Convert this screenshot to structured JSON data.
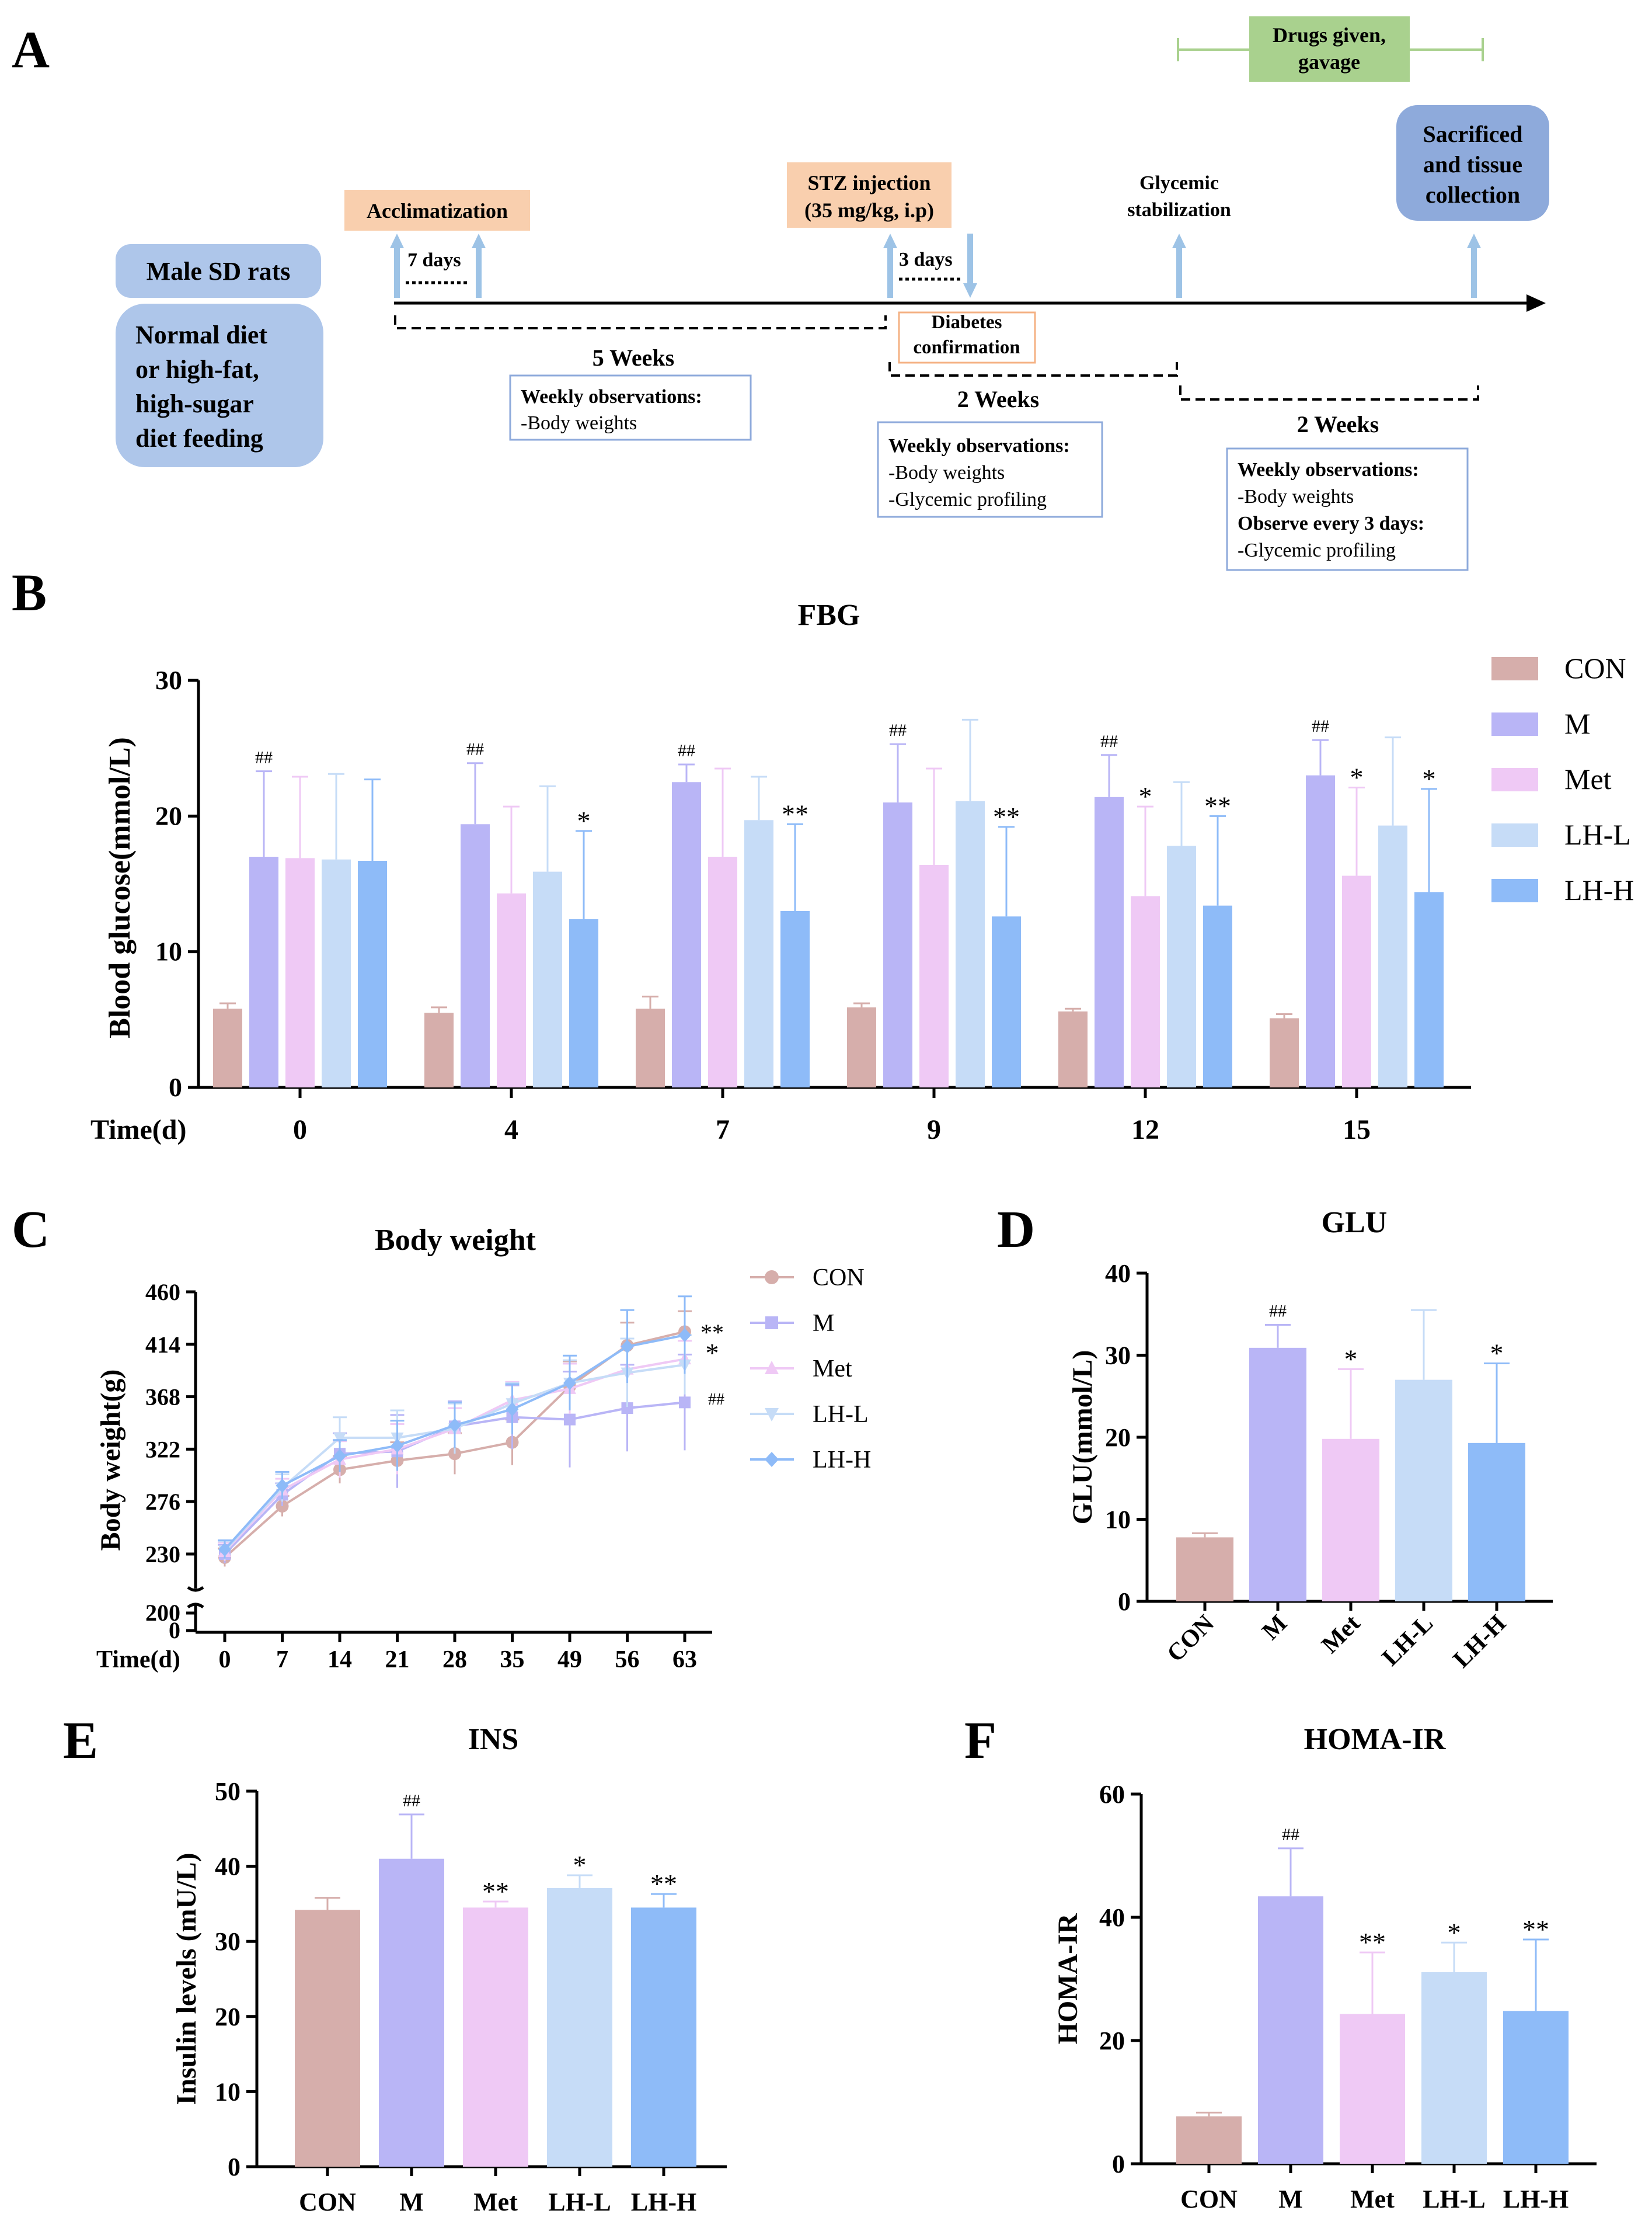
{
  "colors": {
    "CON": "#d6aeab",
    "M": "#b9b5f6",
    "Met": "#efc9f5",
    "LH-L": "#c6dcf7",
    "LH-H": "#8ebbf8",
    "accl_box": "#f9cfae",
    "rats_box": "#aec6ea",
    "drug_box": "#a9d18e",
    "sac_box": "#8eaadb",
    "arrow": "#9dc3e6",
    "note_border": "#8eaadb",
    "axis": "#000000"
  },
  "panel_a": {
    "label": "A",
    "drugs_label": [
      "Drugs given,",
      "gavage"
    ],
    "sacrificed_label": [
      "Sacrificed",
      "and tissue",
      "collection"
    ],
    "acclimatization": "Acclimatization",
    "stz_label": [
      "STZ injection",
      "(35 mg/kg, i.p)"
    ],
    "glycemic_label": [
      "Glycemic",
      "stabilization"
    ],
    "rats_label": "Male SD rats",
    "diet_label": [
      "Normal diet",
      "or high-fat,",
      "high-sugar",
      "diet feeding"
    ],
    "days7": "7 days",
    "days3": "3 days",
    "diabetes_label": [
      "Diabetes",
      "confirmation"
    ],
    "weeks5": "5 Weeks",
    "weeks2a": "2 Weeks",
    "weeks2b": "2 Weeks",
    "note1": [
      "Weekly observations:",
      "-Body weights"
    ],
    "note2": [
      "Weekly observations:",
      "-Body weights",
      "-Glycemic profiling"
    ],
    "note3": [
      "Weekly observations:",
      "-Body weights",
      "Observe every 3 days:",
      "-Glycemic profiling"
    ]
  },
  "chart_data": [
    {
      "panel": "B",
      "type": "bar",
      "title": "FBG",
      "ylabel": "Blood glucose(mmol/L)",
      "xlabel": "Time(d)",
      "ylim": [
        0,
        30
      ],
      "yticks": [
        0,
        10,
        20,
        30
      ],
      "categories": [
        "0",
        "4",
        "7",
        "9",
        "12",
        "15"
      ],
      "legend": [
        "CON",
        "M",
        "Met",
        "LH-L",
        "LH-H"
      ],
      "series": [
        {
          "name": "CON",
          "values": [
            5.8,
            5.5,
            5.8,
            5.9,
            5.6,
            5.1
          ],
          "errors": [
            0.4,
            0.4,
            0.9,
            0.3,
            0.2,
            0.3
          ],
          "marks": [
            "",
            "",
            "",
            "",
            "",
            ""
          ]
        },
        {
          "name": "M",
          "values": [
            17.0,
            19.4,
            22.5,
            21.0,
            21.4,
            23.0
          ],
          "errors": [
            6.3,
            4.5,
            1.3,
            4.3,
            3.1,
            2.6
          ],
          "marks": [
            "##",
            "##",
            "##",
            "##",
            "##",
            "##"
          ]
        },
        {
          "name": "Met",
          "values": [
            16.9,
            14.3,
            17.0,
            16.4,
            14.1,
            15.6
          ],
          "errors": [
            6.0,
            6.4,
            6.5,
            7.1,
            6.6,
            6.5
          ],
          "marks": [
            "",
            "",
            "",
            "",
            "*",
            "*"
          ]
        },
        {
          "name": "LH-L",
          "values": [
            16.8,
            15.9,
            19.7,
            21.1,
            17.8,
            19.3
          ],
          "errors": [
            6.3,
            6.3,
            3.2,
            6.0,
            4.7,
            6.5
          ],
          "marks": [
            "",
            "",
            "",
            "",
            "",
            ""
          ]
        },
        {
          "name": "LH-H",
          "values": [
            16.7,
            12.4,
            13.0,
            12.6,
            13.4,
            14.4
          ],
          "errors": [
            6.0,
            6.5,
            6.4,
            6.6,
            6.6,
            7.6
          ],
          "marks": [
            "",
            "*",
            "**",
            "**",
            "**",
            "*"
          ]
        }
      ]
    },
    {
      "panel": "C",
      "type": "line",
      "title": "Body weight",
      "ylabel": "Body weight(g)",
      "xlabel": "Time(d)",
      "x": [
        "0",
        "7",
        "14",
        "21",
        "28",
        "35",
        "49",
        "56",
        "63"
      ],
      "yticks": [
        230,
        276,
        322,
        368,
        414,
        460
      ],
      "ybreak": {
        "lower": [
          0,
          200
        ],
        "upper": [
          210,
          460
        ]
      },
      "ylower_ticks": [
        "200",
        "0"
      ],
      "legend": [
        "CON",
        "M",
        "Met",
        "LH-L",
        "LH-H"
      ],
      "series": [
        {
          "name": "CON",
          "values": [
            227,
            272,
            304,
            312,
            318,
            328,
            377,
            413,
            425
          ],
          "errors": [
            8,
            9,
            12,
            16,
            18,
            20,
            22,
            20,
            18
          ],
          "mark": ""
        },
        {
          "name": "M",
          "values": [
            230,
            282,
            318,
            320,
            342,
            350,
            348,
            358,
            363
          ],
          "errors": [
            8,
            10,
            18,
            32,
            22,
            28,
            42,
            38,
            42
          ],
          "mark": "##"
        },
        {
          "name": "Met",
          "values": [
            232,
            286,
            313,
            322,
            340,
            365,
            375,
            392,
            401
          ],
          "errors": [
            8,
            10,
            16,
            22,
            18,
            16,
            22,
            20,
            16
          ],
          "mark": "*"
        },
        {
          "name": "LH-L",
          "values": [
            233,
            288,
            332,
            332,
            340,
            362,
            380,
            389,
            396
          ],
          "errors": [
            8,
            12,
            18,
            24,
            22,
            18,
            20,
            30,
            26
          ],
          "mark": ""
        },
        {
          "name": "LH-H",
          "values": [
            234,
            290,
            316,
            325,
            343,
            357,
            380,
            412,
            422
          ],
          "errors": [
            8,
            12,
            14,
            22,
            20,
            22,
            24,
            32,
            34
          ],
          "mark": "**"
        }
      ]
    },
    {
      "panel": "D",
      "type": "bar",
      "title": "GLU",
      "ylabel": "GLU(mmol/L)",
      "ylim": [
        0,
        40
      ],
      "yticks": [
        0,
        10,
        20,
        30,
        40
      ],
      "categories": [
        "CON",
        "M",
        "Met",
        "LH-L",
        "LH-H"
      ],
      "values": [
        7.8,
        30.9,
        19.8,
        27.0,
        19.3
      ],
      "errors": [
        0.5,
        2.8,
        8.5,
        8.5,
        9.7
      ],
      "marks": [
        "",
        "##",
        "*",
        "",
        "*"
      ]
    },
    {
      "panel": "E",
      "type": "bar",
      "title": "INS",
      "ylabel": "Insulin levels (mU/L)",
      "ylim": [
        0,
        50
      ],
      "yticks": [
        0,
        10,
        20,
        30,
        40,
        50
      ],
      "categories": [
        "CON",
        "M",
        "Met",
        "LH-L",
        "LH-H"
      ],
      "values": [
        34.2,
        41.0,
        34.5,
        37.1,
        34.5
      ],
      "errors": [
        1.6,
        5.9,
        0.8,
        1.7,
        1.8
      ],
      "marks": [
        "",
        "##",
        "**",
        "*",
        "**"
      ]
    },
    {
      "panel": "F",
      "type": "bar",
      "title": "HOMA-IR",
      "ylabel": "HOMA-IR",
      "ylim": [
        0,
        60
      ],
      "yticks": [
        0,
        20,
        40,
        60
      ],
      "categories": [
        "CON",
        "M",
        "Met",
        "LH-L",
        "LH-H"
      ],
      "values": [
        7.7,
        43.4,
        24.3,
        31.1,
        24.8
      ],
      "errors": [
        0.6,
        7.8,
        10.0,
        4.8,
        11.6
      ],
      "marks": [
        "",
        "##",
        "**",
        "*",
        "**"
      ]
    }
  ]
}
